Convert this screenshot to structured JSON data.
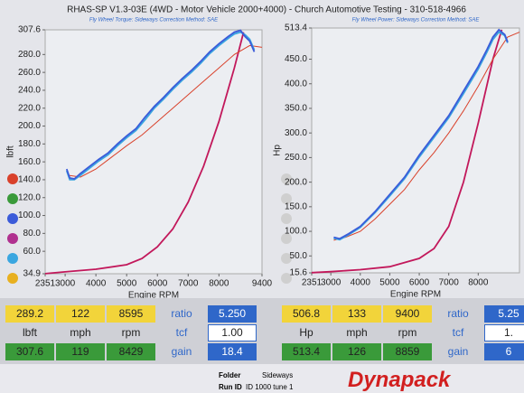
{
  "header": {
    "title": "RHAS-SP V1.3-03E (4WD - Motor Vehicle 2000+4000) - Church Automotive Testing - 310-518-4966"
  },
  "chart_data": [
    {
      "type": "line",
      "subtitle": "Fly Wheel Torque: Sideways     Correction Method: SAE",
      "y_label": "lbft",
      "x_label": "Engine RPM",
      "xlim": [
        2351,
        9400
      ],
      "xticks": [
        2351,
        3000,
        4000,
        5000,
        6000,
        7000,
        8000,
        9400
      ],
      "ylim": [
        34.9,
        307.6
      ],
      "yticks": [
        34.9,
        {
          "value": 60,
          "label": "60.0"
        },
        {
          "value": 80,
          "label": "80.0"
        },
        {
          "value": 100,
          "label": "100.0"
        },
        {
          "value": 120,
          "label": "120.0"
        },
        {
          "value": 140,
          "label": "140.0"
        },
        {
          "value": 160,
          "label": "160.0"
        },
        {
          "value": 180,
          "label": "180.0"
        },
        {
          "value": 200,
          "label": "200.0"
        },
        {
          "value": 220,
          "label": "220.0"
        },
        {
          "value": 240,
          "label": "240.0"
        },
        {
          "value": 260,
          "label": "260.0"
        },
        {
          "value": 280,
          "label": "280.0"
        },
        307.6
      ],
      "series": [
        {
          "color": "#c2185b",
          "x": [
            2351,
            3000,
            4000,
            5000,
            5500,
            6000,
            6500,
            7000,
            7500,
            8000,
            8500,
            8800
          ],
          "values": [
            35,
            37,
            40,
            45,
            52,
            65,
            85,
            115,
            155,
            205,
            265,
            305
          ]
        },
        {
          "color": "#d9412b",
          "x": [
            3100,
            3500,
            4000,
            4500,
            5000,
            5500,
            6000,
            6500,
            7000,
            7500,
            8000,
            8500,
            9000,
            9400
          ],
          "values": [
            145,
            143,
            152,
            165,
            178,
            190,
            205,
            220,
            235,
            250,
            265,
            280,
            290,
            288
          ]
        },
        {
          "color": "#3aa6e0",
          "x": [
            3050,
            3150,
            3300,
            3500,
            3800,
            4100,
            4400,
            4700,
            5000,
            5300,
            5600,
            5900,
            6200,
            6500,
            6800,
            7100,
            7400,
            7700,
            8000,
            8300,
            8500,
            8700,
            8850,
            9000,
            9150
          ],
          "values": [
            150,
            140,
            140,
            145,
            153,
            161,
            168,
            178,
            187,
            195,
            207,
            220,
            230,
            241,
            251,
            260,
            270,
            281,
            290,
            298,
            303,
            305,
            302,
            297,
            285
          ]
        },
        {
          "color": "#3b5bd9",
          "x": [
            3050,
            3150,
            3300,
            3500,
            3800,
            4100,
            4400,
            4700,
            5000,
            5300,
            5600,
            5900,
            6200,
            6500,
            6800,
            7100,
            7400,
            7700,
            8000,
            8300,
            8500,
            8700,
            8850,
            9000,
            9150
          ],
          "values": [
            152,
            142,
            141,
            147,
            155,
            163,
            170,
            180,
            189,
            197,
            210,
            222,
            232,
            243,
            253,
            262,
            272,
            283,
            292,
            300,
            305,
            307,
            300,
            295,
            283
          ]
        }
      ]
    },
    {
      "type": "line",
      "subtitle": "Fly Wheel Power: Sideways     Correction Method: SAE",
      "y_label": "Hp",
      "x_label": "Engine RPM",
      "xlim": [
        2351,
        9400
      ],
      "xticks": [
        2351,
        3000,
        4000,
        5000,
        6000,
        7000,
        8000
      ],
      "ylim": [
        15.6,
        513.4
      ],
      "yticks": [
        15.6,
        {
          "value": 50,
          "label": "50.0"
        },
        {
          "value": 100,
          "label": "100.0"
        },
        {
          "value": 150,
          "label": "150.0"
        },
        {
          "value": 200,
          "label": "200.0"
        },
        {
          "value": 250,
          "label": "250.0"
        },
        {
          "value": 300,
          "label": "300.0"
        },
        {
          "value": 350,
          "label": "350.0"
        },
        {
          "value": 400,
          "label": "400.0"
        },
        {
          "value": 450,
          "label": "450.0"
        },
        513.4
      ],
      "series": [
        {
          "color": "#c2185b",
          "x": [
            2351,
            3000,
            4000,
            5000,
            6000,
            6500,
            7000,
            7500,
            8000,
            8500,
            8800
          ],
          "values": [
            16,
            18,
            22,
            28,
            45,
            65,
            110,
            200,
            320,
            450,
            510
          ]
        },
        {
          "color": "#d9412b",
          "x": [
            3100,
            3500,
            4000,
            4500,
            5000,
            5500,
            6000,
            6500,
            7000,
            7500,
            8000,
            8500,
            9000,
            9400
          ],
          "values": [
            82,
            88,
            100,
            125,
            155,
            185,
            225,
            260,
            300,
            345,
            395,
            450,
            495,
            505
          ]
        },
        {
          "color": "#3aa6e0",
          "x": [
            3100,
            3300,
            3600,
            4000,
            4500,
            5000,
            5500,
            6000,
            6500,
            7000,
            7500,
            8000,
            8300,
            8500,
            8700,
            8900,
            9000
          ],
          "values": [
            86,
            83,
            93,
            108,
            138,
            172,
            207,
            251,
            291,
            331,
            380,
            430,
            465,
            490,
            505,
            498,
            483
          ]
        },
        {
          "color": "#3b5bd9",
          "x": [
            3100,
            3300,
            3600,
            4000,
            4500,
            5000,
            5500,
            6000,
            6500,
            7000,
            7500,
            8000,
            8300,
            8500,
            8700,
            8900,
            9000
          ],
          "values": [
            88,
            85,
            95,
            110,
            140,
            175,
            210,
            255,
            295,
            335,
            385,
            435,
            470,
            495,
            510,
            500,
            485
          ]
        }
      ]
    }
  ],
  "tables": [
    {
      "rows": [
        [
          "289.2",
          "122",
          "8595",
          "ratio",
          "5.250"
        ],
        [
          "lbft",
          "mph",
          "rpm",
          "tcf",
          "1.00"
        ],
        [
          "307.6",
          "119",
          "8429",
          "gain",
          "18.4"
        ]
      ]
    },
    {
      "rows": [
        [
          "506.8",
          "133",
          "9400",
          "ratio",
          "5.25"
        ],
        [
          "Hp",
          "mph",
          "rpm",
          "tcf",
          "1."
        ],
        [
          "513.4",
          "126",
          "8859",
          "gain",
          "6"
        ]
      ]
    }
  ],
  "footer": {
    "folder_label": "Folder",
    "folder": "Sideways",
    "run_label": "Run ID",
    "run": "ID 1000 tune 1",
    "logo": "Dynapack"
  }
}
